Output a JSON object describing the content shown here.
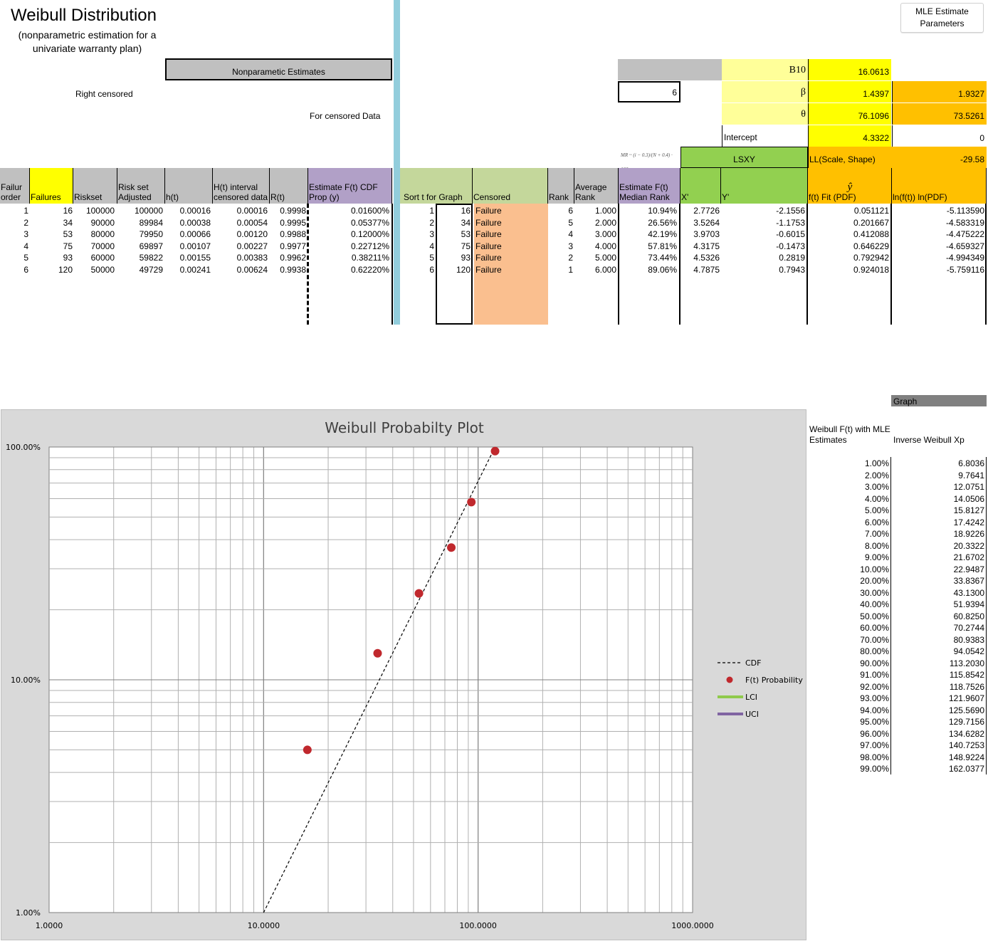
{
  "title": "Weibull Distribution",
  "subtitle": "(nonparametric estimation for a univariate warranty plan)",
  "mle_button": "MLE Estimate Parameters",
  "nonparam_header": "Nonparametic Estimates",
  "right_censored_label": "Right censored",
  "censored_data_label": "For censored Data",
  "censored_count": "6",
  "params": {
    "b10_label": "B10",
    "b10_value": "16.0613",
    "beta_label": "β",
    "beta_ls": "1.4397",
    "beta_mle": "1.9327",
    "theta_label": "θ",
    "theta_ls": "76.1096",
    "theta_mle": "73.5261",
    "intercept_label": "Intercept",
    "intercept_ls": "4.3322",
    "intercept_mle": "0",
    "lsxy_label": "LSXY",
    "ll_label": "LL(Scale, Shape)",
    "ll_value": "-29.58",
    "mr_formula": "MR ~ (i − 0.3)/(N + 0.4) · 100"
  },
  "left_headers": [
    "Failur order",
    "Failures",
    "Riskset",
    "Risk set Adjusted",
    "h(t)",
    "H(t) interval censored data",
    "R(t)",
    "Estimate F(t) CDF Prop (y)"
  ],
  "right_headers": [
    "Sort t for Graph",
    "Censored",
    "Rank",
    "Average Rank",
    "Estimate F(t) Median Rank",
    "X'",
    "Y'",
    "ŷ",
    "f(t) Fit (PDF)",
    "ln(f(t)) ln(PDF)"
  ],
  "rows": [
    {
      "order": "1",
      "failures": "16",
      "riskset": "100000",
      "adjusted": "100000",
      "ht": "0.00016",
      "Ht": "0.00016",
      "Rt": "0.9998",
      "Ft": "0.01600%",
      "idx": "1",
      "sort": "16",
      "cens": "Failure",
      "rank": "6",
      "avg": "1.000",
      "median": "10.94%",
      "x": "2.7726",
      "y": "-2.1556",
      "pdf": "0.051121",
      "lnpdf": "-5.113590"
    },
    {
      "order": "2",
      "failures": "34",
      "riskset": "90000",
      "adjusted": "89984",
      "ht": "0.00038",
      "Ht": "0.00054",
      "Rt": "0.9995",
      "Ft": "0.05377%",
      "idx": "2",
      "sort": "34",
      "cens": "Failure",
      "rank": "5",
      "avg": "2.000",
      "median": "26.56%",
      "x": "3.5264",
      "y": "-1.1753",
      "pdf": "0.201667",
      "lnpdf": "-4.583319"
    },
    {
      "order": "3",
      "failures": "53",
      "riskset": "80000",
      "adjusted": "79950",
      "ht": "0.00066",
      "Ht": "0.00120",
      "Rt": "0.9988",
      "Ft": "0.12000%",
      "idx": "3",
      "sort": "53",
      "cens": "Failure",
      "rank": "4",
      "avg": "3.000",
      "median": "42.19%",
      "x": "3.9703",
      "y": "-0.6015",
      "pdf": "0.412088",
      "lnpdf": "-4.475222"
    },
    {
      "order": "4",
      "failures": "75",
      "riskset": "70000",
      "adjusted": "69897",
      "ht": "0.00107",
      "Ht": "0.00227",
      "Rt": "0.9977",
      "Ft": "0.22712%",
      "idx": "4",
      "sort": "75",
      "cens": "Failure",
      "rank": "3",
      "avg": "4.000",
      "median": "57.81%",
      "x": "4.3175",
      "y": "-0.1473",
      "pdf": "0.646229",
      "lnpdf": "-4.659327"
    },
    {
      "order": "5",
      "failures": "93",
      "riskset": "60000",
      "adjusted": "59822",
      "ht": "0.00155",
      "Ht": "0.00383",
      "Rt": "0.9962",
      "Ft": "0.38211%",
      "idx": "5",
      "sort": "93",
      "cens": "Failure",
      "rank": "2",
      "avg": "5.000",
      "median": "73.44%",
      "x": "4.5326",
      "y": "0.2819",
      "pdf": "0.792942",
      "lnpdf": "-4.994349"
    },
    {
      "order": "6",
      "failures": "120",
      "riskset": "50000",
      "adjusted": "49729",
      "ht": "0.00241",
      "Ht": "0.00624",
      "Rt": "0.9938",
      "Ft": "0.62220%",
      "idx": "6",
      "sort": "120",
      "cens": "Failure",
      "rank": "1",
      "avg": "6.000",
      "median": "89.06%",
      "x": "4.7875",
      "y": "0.7943",
      "pdf": "0.924018",
      "lnpdf": "-5.759116"
    }
  ],
  "graph_button": "Graph",
  "inverse": {
    "header_left": "Weibull F(t) with MLE Estimates",
    "header_right": "Inverse Weibull Xp",
    "rows": [
      [
        "1.00%",
        "6.8036"
      ],
      [
        "2.00%",
        "9.7641"
      ],
      [
        "3.00%",
        "12.0751"
      ],
      [
        "4.00%",
        "14.0506"
      ],
      [
        "5.00%",
        "15.8127"
      ],
      [
        "6.00%",
        "17.4242"
      ],
      [
        "7.00%",
        "18.9226"
      ],
      [
        "8.00%",
        "20.3322"
      ],
      [
        "9.00%",
        "21.6702"
      ],
      [
        "10.00%",
        "22.9487"
      ],
      [
        "20.00%",
        "33.8367"
      ],
      [
        "30.00%",
        "43.1300"
      ],
      [
        "40.00%",
        "51.9394"
      ],
      [
        "50.00%",
        "60.8250"
      ],
      [
        "60.00%",
        "70.2744"
      ],
      [
        "70.00%",
        "80.9383"
      ],
      [
        "80.00%",
        "94.0542"
      ],
      [
        "90.00%",
        "113.2030"
      ],
      [
        "91.00%",
        "115.8542"
      ],
      [
        "92.00%",
        "118.7526"
      ],
      [
        "93.00%",
        "121.9607"
      ],
      [
        "94.00%",
        "125.5690"
      ],
      [
        "95.00%",
        "129.7156"
      ],
      [
        "96.00%",
        "134.6282"
      ],
      [
        "97.00%",
        "140.7253"
      ],
      [
        "98.00%",
        "148.9224"
      ],
      [
        "99.00%",
        "162.0377"
      ]
    ]
  },
  "chart_data": {
    "type": "scatter",
    "title": "Weibull Probabilty Plot",
    "x_scale": "log",
    "y_scale": "log",
    "xlim": [
      1,
      1000
    ],
    "ylim": [
      0.01,
      1
    ],
    "x_ticks": [
      "1.0000",
      "10.0000",
      "100.0000",
      "1000.0000"
    ],
    "y_ticks": [
      "1.00%",
      "10.00%",
      "100.00%"
    ],
    "grid": true,
    "legend_position": "right",
    "series": [
      {
        "name": "CDF",
        "kind": "line",
        "style": "dashed",
        "color": "#000000",
        "x": [
          10,
          120
        ],
        "y": [
          0.01,
          1.0
        ]
      },
      {
        "name": "F(t) Probability",
        "kind": "scatter",
        "color": "#c0282d",
        "x": [
          16,
          34,
          53,
          75,
          93,
          120
        ],
        "y": [
          0.05,
          0.13,
          0.235,
          0.37,
          0.58,
          0.96
        ]
      },
      {
        "name": "LCI",
        "kind": "line",
        "color": "#8fca4c",
        "x": [],
        "y": []
      },
      {
        "name": "UCI",
        "kind": "line",
        "color": "#8064a2",
        "x": [],
        "y": []
      }
    ]
  }
}
